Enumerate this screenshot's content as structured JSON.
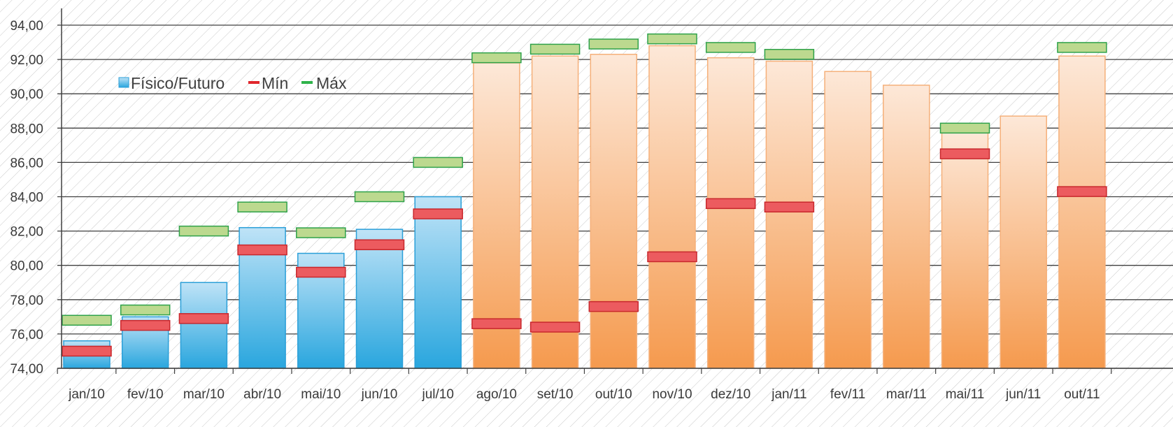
{
  "colors": {
    "actual_top": "#bfe3f7",
    "actual_bottom": "#29a6de",
    "actual_stroke": "#2a9fd8",
    "forecast_top": "#fde8d8",
    "forecast_bottom": "#f59a4e",
    "forecast_stroke": "#f5b07a",
    "min_fill": "#ec5b5f",
    "min_stroke": "#c8282d",
    "max_fill": "#bcd98f",
    "max_stroke": "#2fa24a",
    "grid": "#404040",
    "hatch": "#c8c8c8"
  },
  "chart_data": {
    "type": "bar",
    "title": "",
    "xlabel": "",
    "ylabel": "",
    "ylim": [
      74,
      94
    ],
    "y_ticks": [
      "74,00",
      "76,00",
      "78,00",
      "80,00",
      "82,00",
      "84,00",
      "86,00",
      "88,00",
      "90,00",
      "92,00",
      "94,00"
    ],
    "y_tick_values": [
      74,
      76,
      78,
      80,
      82,
      84,
      86,
      88,
      90,
      92,
      94
    ],
    "grid": true,
    "legend_position": "top-left",
    "categories": [
      "jan/10",
      "fev/10",
      "mar/10",
      "abr/10",
      "mai/10",
      "jun/10",
      "jul/10",
      "ago/10",
      "set/10",
      "out/10",
      "nov/10",
      "dez/10",
      "jan/11",
      "fev/11",
      "mar/11",
      "mai/11",
      "jun/11",
      "out/11"
    ],
    "series": [
      {
        "name": "Físico/Futuro",
        "values": [
          75.6,
          77.0,
          79.0,
          82.2,
          80.7,
          82.1,
          84.0,
          91.8,
          92.2,
          92.3,
          92.8,
          92.1,
          91.9,
          91.3,
          90.5,
          87.8,
          88.7,
          92.2
        ],
        "segment": [
          "actual",
          "actual",
          "actual",
          "actual",
          "actual",
          "actual",
          "actual",
          "forecast",
          "forecast",
          "forecast",
          "forecast",
          "forecast",
          "forecast",
          "forecast",
          "forecast",
          "forecast",
          "forecast",
          "forecast"
        ]
      },
      {
        "name": "Mín",
        "values": [
          75.0,
          76.5,
          76.9,
          80.9,
          79.6,
          81.2,
          83.0,
          76.6,
          76.4,
          77.6,
          80.5,
          83.6,
          83.4,
          null,
          null,
          86.5,
          null,
          84.3
        ]
      },
      {
        "name": "Máx",
        "values": [
          76.8,
          77.4,
          82.0,
          83.4,
          81.9,
          84.0,
          86.0,
          92.1,
          92.6,
          92.9,
          93.2,
          92.7,
          92.3,
          null,
          null,
          88.0,
          null,
          92.7
        ]
      }
    ]
  }
}
